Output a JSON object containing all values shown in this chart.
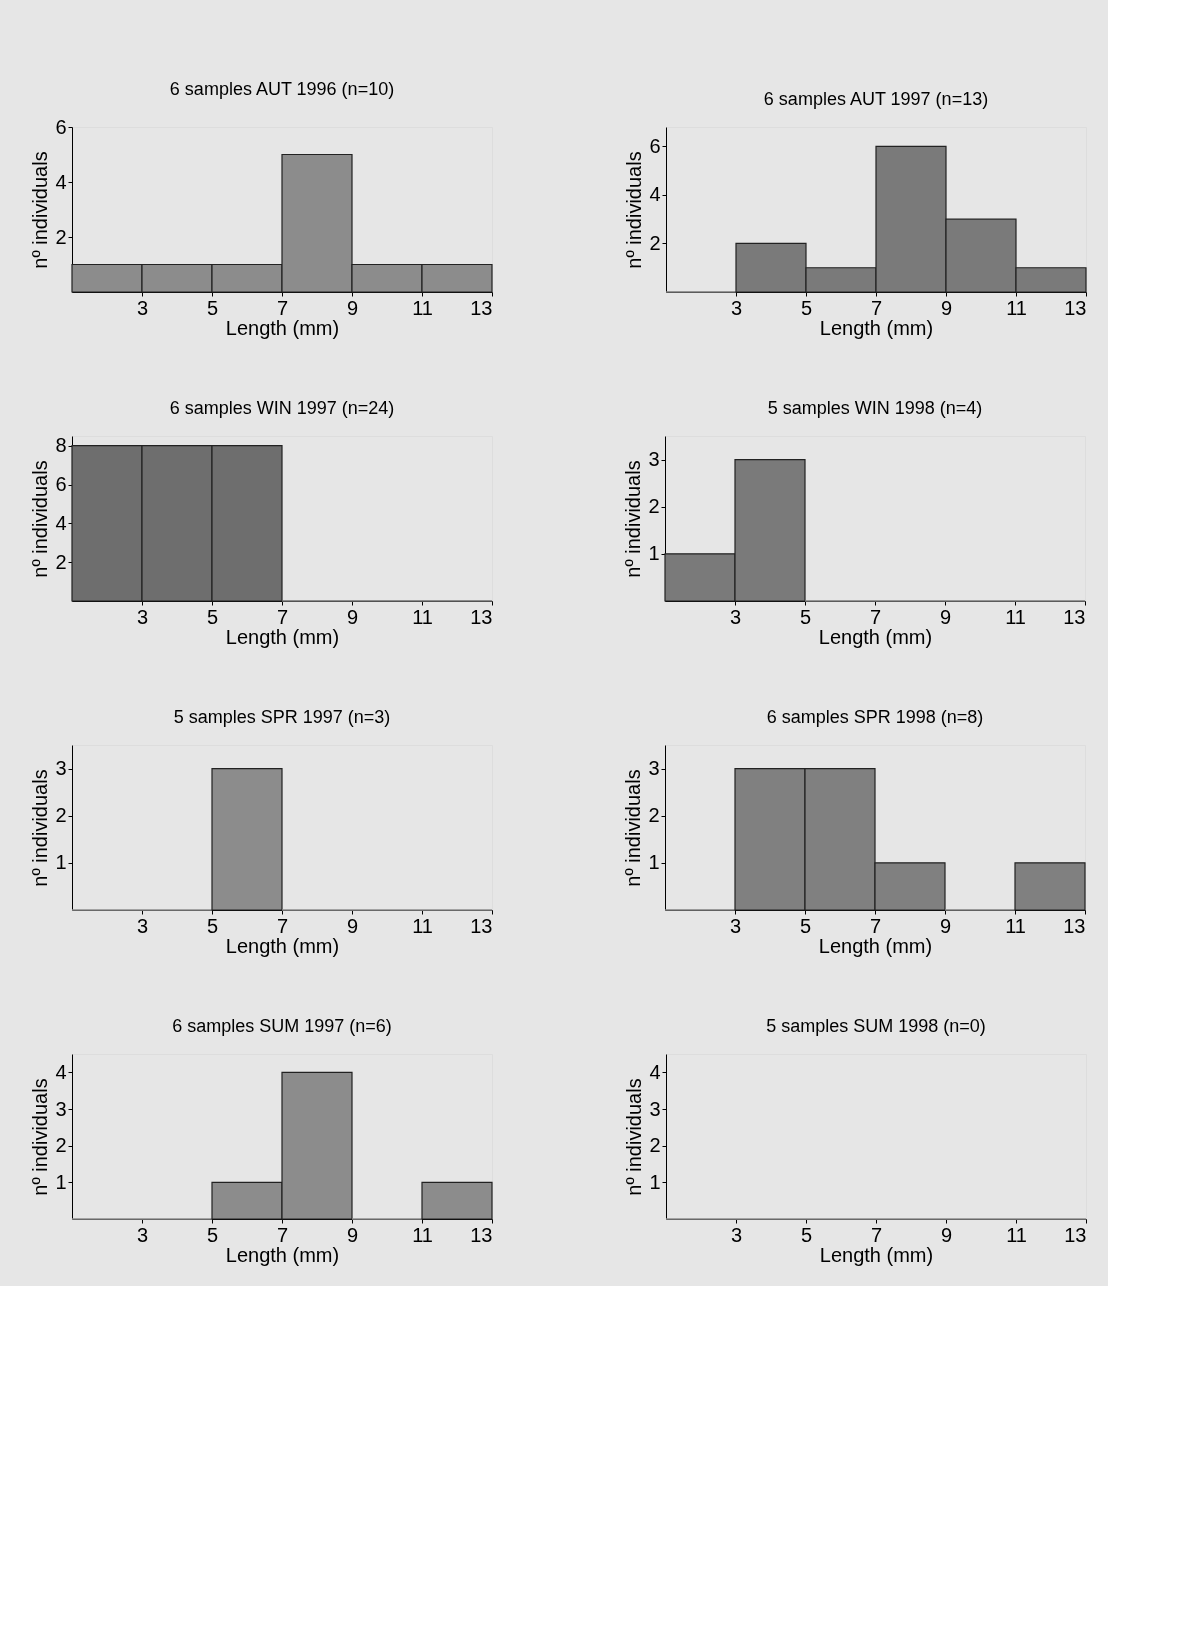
{
  "chart_data": [
    {
      "type": "histogram",
      "title": "6 samples AUT 1996 (n=10)",
      "xlabel": "Length (mm)",
      "ylabel": "nº individuals",
      "bins": [
        1,
        3,
        5,
        7,
        9,
        11,
        13
      ],
      "values": [
        1,
        1,
        1,
        5,
        1,
        1
      ],
      "color": "#8c8c8c",
      "xlim": [
        1,
        13
      ],
      "xticks": [
        3,
        5,
        7,
        9,
        11,
        13
      ],
      "ylim": [
        0,
        6
      ],
      "yticks": [
        2,
        4,
        6
      ],
      "grid": false
    },
    {
      "type": "histogram",
      "title": "6 samples AUT 1997 (n=13)",
      "xlabel": "Length (mm)",
      "ylabel": "nº individuals",
      "bins": [
        1,
        3,
        5,
        7,
        9,
        11,
        13
      ],
      "values": [
        0,
        2,
        1,
        6,
        3,
        1
      ],
      "color": "#7a7a7a",
      "xlim": [
        1,
        13
      ],
      "xticks": [
        3,
        5,
        7,
        9,
        11,
        13
      ],
      "ylim": [
        0,
        6.8
      ],
      "yticks": [
        2,
        4,
        6
      ],
      "grid": false
    },
    {
      "type": "histogram",
      "title": "6 samples WIN 1997 (n=24)",
      "xlabel": "Length (mm)",
      "ylabel": "nº individuals",
      "bins": [
        1,
        3,
        5,
        7,
        9,
        11,
        13
      ],
      "values": [
        8,
        8,
        8,
        0,
        0,
        0
      ],
      "color": "#6e6e6e",
      "xlim": [
        1,
        13
      ],
      "xticks": [
        3,
        5,
        7,
        9,
        11,
        13
      ],
      "ylim": [
        0,
        8.5
      ],
      "yticks": [
        2,
        4,
        6,
        8
      ],
      "grid": false
    },
    {
      "type": "histogram",
      "title": "5 samples WIN 1998 (n=4)",
      "xlabel": "Length (mm)",
      "ylabel": "nº individuals",
      "bins": [
        1,
        3,
        5,
        7,
        9,
        11,
        13
      ],
      "values": [
        1,
        3,
        0,
        0,
        0,
        0
      ],
      "color": "#7a7a7a",
      "xlim": [
        1,
        13
      ],
      "xticks": [
        3,
        5,
        7,
        9,
        11,
        13
      ],
      "ylim": [
        0,
        3.5
      ],
      "yticks": [
        1,
        2,
        3
      ],
      "grid": false
    },
    {
      "type": "histogram",
      "title": "5 samples SPR 1997 (n=3)",
      "xlabel": "Length (mm)",
      "ylabel": "nº individuals",
      "bins": [
        1,
        3,
        5,
        7,
        9,
        11,
        13
      ],
      "values": [
        0,
        0,
        3,
        0,
        0,
        0
      ],
      "color": "#8c8c8c",
      "xlim": [
        1,
        13
      ],
      "xticks": [
        3,
        5,
        7,
        9,
        11,
        13
      ],
      "ylim": [
        0,
        3.5
      ],
      "yticks": [
        1,
        2,
        3
      ],
      "grid": false
    },
    {
      "type": "histogram",
      "title": "6 samples SPR 1998 (n=8)",
      "xlabel": "Length (mm)",
      "ylabel": "nº individuals",
      "bins": [
        1,
        3,
        5,
        7,
        9,
        11,
        13
      ],
      "values": [
        0,
        3,
        3,
        1,
        0,
        1
      ],
      "color": "#808080",
      "xlim": [
        1,
        13
      ],
      "xticks": [
        3,
        5,
        7,
        9,
        11,
        13
      ],
      "ylim": [
        0,
        3.5
      ],
      "yticks": [
        1,
        2,
        3
      ],
      "grid": false
    },
    {
      "type": "histogram",
      "title": "6 samples SUM 1997 (n=6)",
      "xlabel": "Length (mm)",
      "ylabel": "nº individuals",
      "bins": [
        1,
        3,
        5,
        7,
        9,
        11,
        13
      ],
      "values": [
        0,
        0,
        1,
        4,
        0,
        1
      ],
      "color": "#8c8c8c",
      "xlim": [
        1,
        13
      ],
      "xticks": [
        3,
        5,
        7,
        9,
        11,
        13
      ],
      "ylim": [
        0,
        4.5
      ],
      "yticks": [
        1,
        2,
        3,
        4
      ],
      "grid": false
    },
    {
      "type": "histogram",
      "title": "5 samples SUM 1998 (n=0)",
      "xlabel": "Length (mm)",
      "ylabel": "nº individuals",
      "bins": [
        1,
        3,
        5,
        7,
        9,
        11,
        13
      ],
      "values": [
        0,
        0,
        0,
        0,
        0,
        0
      ],
      "color": "#8c8c8c",
      "xlim": [
        1,
        13
      ],
      "xticks": [
        3,
        5,
        7,
        9,
        11,
        13
      ],
      "ylim": [
        0,
        4.5
      ],
      "yticks": [
        1,
        2,
        3,
        4
      ],
      "grid": false
    }
  ]
}
